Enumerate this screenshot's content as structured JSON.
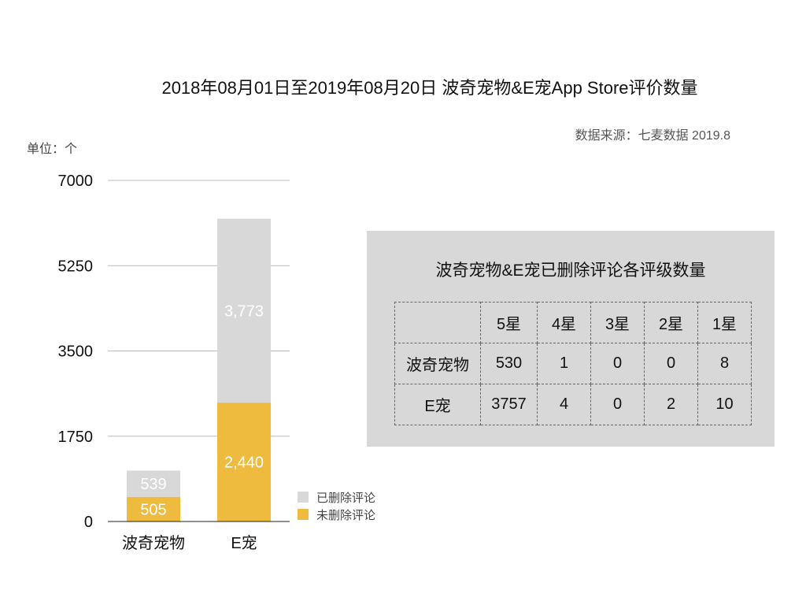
{
  "title": "2018年08月01日至2019年08月20日 波奇宠物&E宠App Store评价数量",
  "source": "数据来源：七麦数据 2019.8",
  "unit_label": "单位：个",
  "colors": {
    "deleted": "#d9d8d8",
    "not_deleted": "#efbb3f",
    "grid": "#bbbbbb",
    "panel": "#d9d8d8"
  },
  "chart_data": {
    "type": "bar",
    "stacked": true,
    "categories": [
      "波奇宠物",
      "E宠"
    ],
    "series": [
      {
        "name": "未删除评论",
        "values": [
          505,
          2440
        ],
        "labels": [
          "505",
          "2,440"
        ],
        "color": "#efbb3f"
      },
      {
        "name": "已删除评论",
        "values": [
          539,
          3773
        ],
        "labels": [
          "539",
          "3,773"
        ],
        "color": "#d9d8d8"
      }
    ],
    "ylim": [
      0,
      7000
    ],
    "yticks": [
      "0",
      "1750",
      "3500",
      "5250",
      "7000"
    ],
    "grid": true,
    "legend": [
      "已删除评论",
      "未删除评论"
    ],
    "legend_position": "right"
  },
  "table": {
    "title": "波奇宠物&E宠已删除评论各评级数量",
    "headers": [
      "",
      "5星",
      "4星",
      "3星",
      "2星",
      "1星"
    ],
    "rows": [
      [
        "波奇宠物",
        "530",
        "1",
        "0",
        "0",
        "8"
      ],
      [
        "E宠",
        "3757",
        "4",
        "0",
        "2",
        "10"
      ]
    ]
  }
}
